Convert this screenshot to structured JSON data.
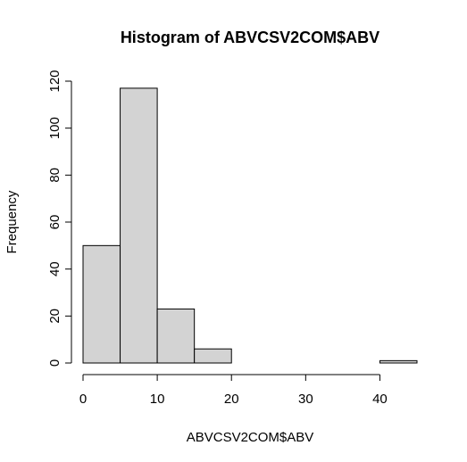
{
  "chart_data": {
    "type": "bar",
    "title": "Histogram of ABVCSV2COM$ABV",
    "xlabel": "ABVCSV2COM$ABV",
    "ylabel": "Frequency",
    "bin_edges": [
      0,
      5,
      10,
      15,
      20,
      25,
      30,
      35,
      40,
      45
    ],
    "categories": [
      "0-5",
      "5-10",
      "10-15",
      "15-20",
      "20-25",
      "25-30",
      "30-35",
      "35-40",
      "40-45"
    ],
    "values": [
      50,
      117,
      23,
      6,
      0,
      0,
      0,
      0,
      1
    ],
    "xlim": [
      0,
      45
    ],
    "ylim": [
      0,
      120
    ],
    "x_ticks": [
      0,
      10,
      20,
      30,
      40
    ],
    "y_ticks": [
      0,
      20,
      40,
      60,
      80,
      100,
      120
    ],
    "grid": false,
    "legend": "none",
    "colors": {
      "bar_fill": "#d3d3d3",
      "bar_stroke": "#000000",
      "axis": "#000000",
      "background": "#ffffff"
    }
  }
}
